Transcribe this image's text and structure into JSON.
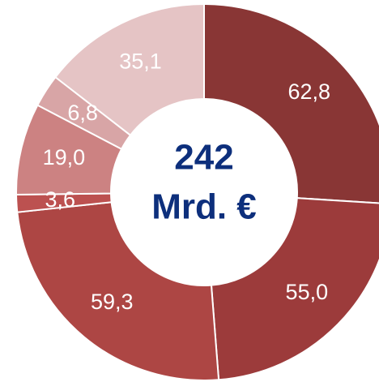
{
  "chart_data": {
    "type": "donut",
    "center_text": [
      "242",
      "Mrd. €"
    ],
    "values": [
      62.8,
      55.0,
      59.3,
      3.6,
      19.0,
      6.8,
      35.1
    ],
    "value_labels": [
      "62,8",
      "55,0",
      "59,3",
      "3,6",
      "19,0",
      "6,8",
      "35,1"
    ],
    "colors": [
      "#893635",
      "#9c3b3b",
      "#ad4644",
      "#bc5150",
      "#cc8282",
      "#d8a5a6",
      "#e5c4c5"
    ]
  }
}
